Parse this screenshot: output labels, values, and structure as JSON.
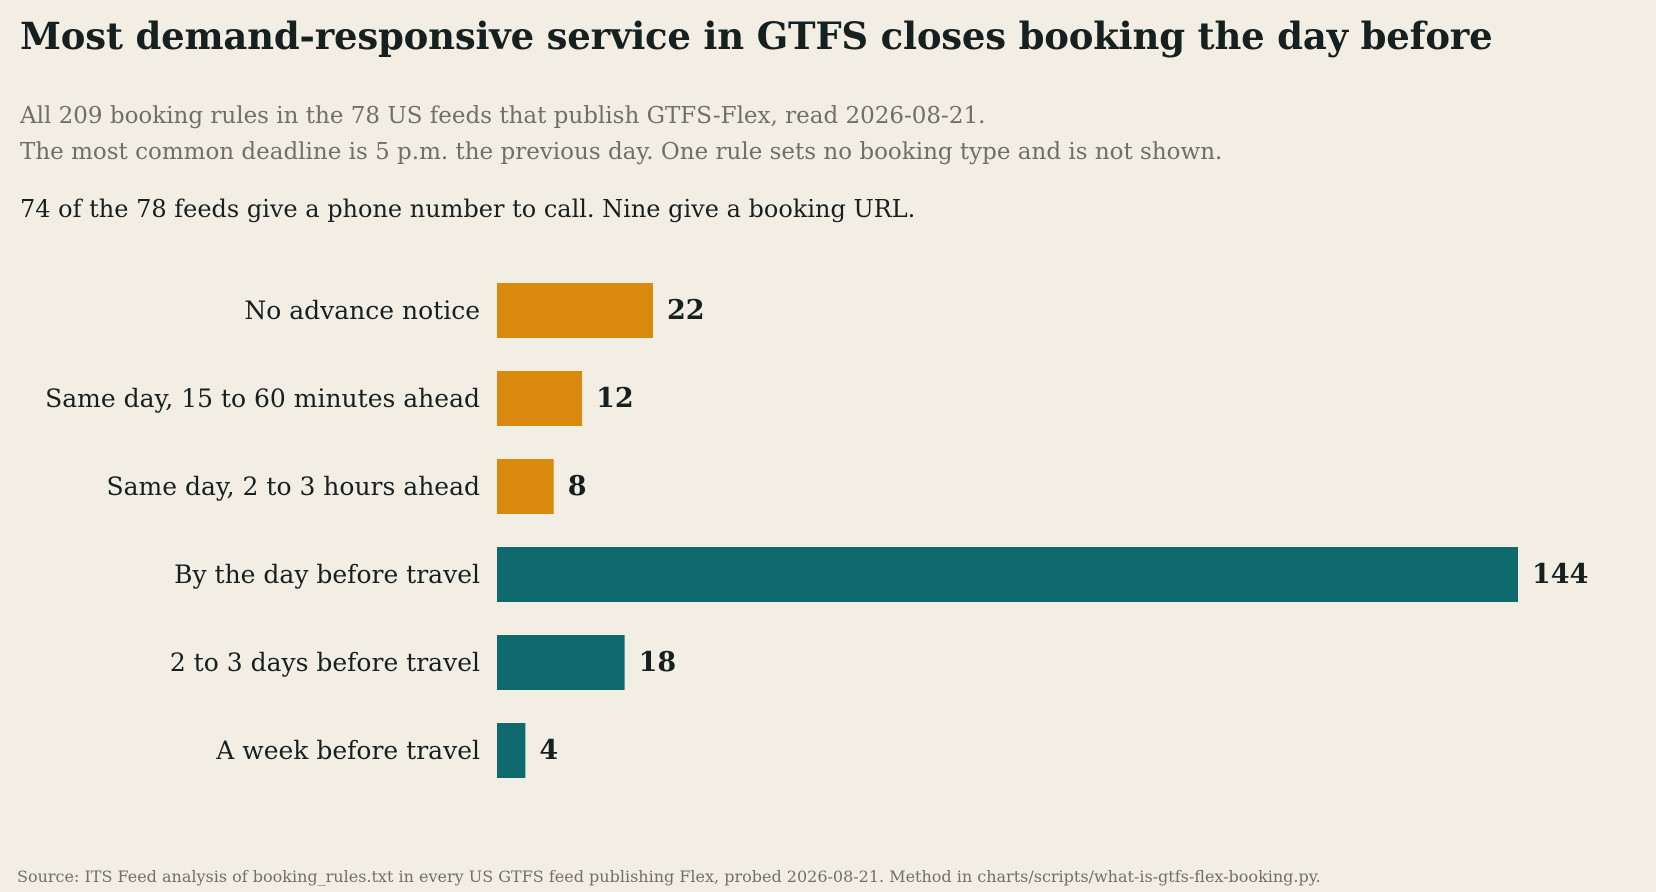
{
  "header": {
    "title": "Most demand-responsive service in GTFS closes booking the day before",
    "subtitle_line1": "All 209 booking rules in the 78 US feeds that publish GTFS-Flex, read 2026-08-21.",
    "subtitle_line2": "The most common deadline is 5 p.m. the previous day. One rule sets no booking type and is not shown.",
    "note": "74 of the 78 feeds give a phone number to call. Nine give a booking URL."
  },
  "footer": {
    "source": "Source: ITS Feed analysis of booking_rules.txt in every US GTFS feed publishing Flex, probed 2026-08-21. Method in charts/scripts/what-is-gtfs-flex-booking.py."
  },
  "chart_data": {
    "type": "bar",
    "orientation": "horizontal",
    "categories": [
      "No advance notice",
      "Same day, 15 to 60 minutes ahead",
      "Same day, 2 to 3 hours ahead",
      "By the day before travel",
      "2 to 3 days before travel",
      "A week before travel"
    ],
    "values": [
      22,
      12,
      8,
      144,
      18,
      4
    ],
    "colors": [
      "#d98a0e",
      "#d98a0e",
      "#d98a0e",
      "#0e6a6d",
      "#0e6a6d",
      "#0e6a6d"
    ],
    "value_labels": [
      "22",
      "12",
      "8",
      "144",
      "18",
      "4"
    ],
    "xlim": [
      0,
      144
    ],
    "grid": false,
    "legend": "none"
  }
}
